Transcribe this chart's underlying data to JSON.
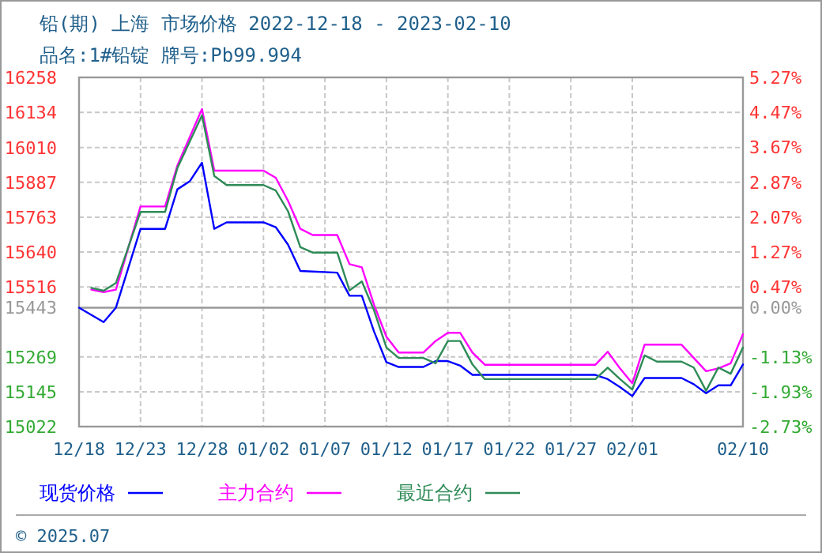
{
  "chart_data": {
    "type": "line",
    "title": "铅(期) 上海 市场价格 2022-12-18 - 2023-02-10",
    "subtitle": "品名:1#铅锭 牌号:Pb99.994",
    "series": [
      {
        "name": "现货价格",
        "color": "#0000ff",
        "x": [
          "2022-12-18",
          "2022-12-20",
          "2022-12-21",
          "2022-12-23",
          "2022-12-25",
          "2022-12-26",
          "2022-12-27",
          "2022-12-28",
          "2022-12-29",
          "2022-12-30",
          "2023-01-02",
          "2023-01-03",
          "2023-01-04",
          "2023-01-05",
          "2023-01-08",
          "2023-01-09",
          "2023-01-10",
          "2023-01-11",
          "2023-01-12",
          "2023-01-13",
          "2023-01-15",
          "2023-01-16",
          "2023-01-17",
          "2023-01-18",
          "2023-01-19",
          "2023-01-29",
          "2023-01-30",
          "2023-01-31",
          "2023-02-01",
          "2023-02-02",
          "2023-02-05",
          "2023-02-06",
          "2023-02-07",
          "2023-02-08",
          "2023-02-09",
          "2023-02-10"
        ],
        "values": [
          15443,
          15392,
          15443,
          15722,
          15722,
          15862,
          15890,
          15956,
          15722,
          15745,
          15745,
          15728,
          15666,
          15573,
          15567,
          15485,
          15485,
          15358,
          15250,
          15233,
          15233,
          15254,
          15254,
          15238,
          15205,
          15205,
          15190,
          15162,
          15130,
          15194,
          15194,
          15172,
          15140,
          15168,
          15168,
          15242
        ]
      },
      {
        "name": "主力合约",
        "color": "#ff00ff",
        "x": [
          "2022-12-19",
          "2022-12-20",
          "2022-12-21",
          "2022-12-23",
          "2022-12-25",
          "2022-12-26",
          "2022-12-28",
          "2022-12-29",
          "2023-01-02",
          "2023-01-03",
          "2023-01-04",
          "2023-01-05",
          "2023-01-06",
          "2023-01-08",
          "2023-01-09",
          "2023-01-10",
          "2023-01-11",
          "2023-01-12",
          "2023-01-13",
          "2023-01-15",
          "2023-01-16",
          "2023-01-17",
          "2023-01-18",
          "2023-01-19",
          "2023-01-20",
          "2023-01-29",
          "2023-01-30",
          "2023-01-31",
          "2023-02-01",
          "2023-02-02",
          "2023-02-05",
          "2023-02-06",
          "2023-02-07",
          "2023-02-08",
          "2023-02-09",
          "2023-02-10"
        ],
        "values": [
          15507,
          15498,
          15507,
          15801,
          15801,
          15946,
          16146,
          15928,
          15928,
          15903,
          15821,
          15722,
          15700,
          15700,
          15597,
          15586,
          15452,
          15340,
          15284,
          15284,
          15325,
          15354,
          15354,
          15284,
          15241,
          15241,
          15287,
          15228,
          15175,
          15312,
          15312,
          15265,
          15218,
          15228,
          15246,
          15349
        ]
      },
      {
        "name": "最近合约",
        "color": "#2e8b57",
        "x": [
          "2022-12-19",
          "2022-12-20",
          "2022-12-21",
          "2022-12-23",
          "2022-12-25",
          "2022-12-26",
          "2022-12-28",
          "2022-12-29",
          "2022-12-30",
          "2023-01-02",
          "2023-01-03",
          "2023-01-04",
          "2023-01-05",
          "2023-01-06",
          "2023-01-08",
          "2023-01-09",
          "2023-01-10",
          "2023-01-11",
          "2023-01-12",
          "2023-01-13",
          "2023-01-15",
          "2023-01-16",
          "2023-01-17",
          "2023-01-18",
          "2023-01-19",
          "2023-01-20",
          "2023-01-29",
          "2023-01-30",
          "2023-01-31",
          "2023-02-01",
          "2023-02-02",
          "2023-02-03",
          "2023-02-05",
          "2023-02-06",
          "2023-02-07",
          "2023-02-08",
          "2023-02-09",
          "2023-02-10"
        ],
        "values": [
          15513,
          15503,
          15530,
          15782,
          15782,
          15937,
          16124,
          15909,
          15877,
          15877,
          15858,
          15784,
          15657,
          15638,
          15638,
          15504,
          15536,
          15433,
          15302,
          15265,
          15265,
          15246,
          15325,
          15325,
          15242,
          15190,
          15190,
          15231,
          15190,
          15153,
          15274,
          15252,
          15252,
          15231,
          15149,
          15231,
          15209,
          15302
        ]
      }
    ],
    "xlim": [
      "2022-12-18",
      "2023-02-10"
    ],
    "xticks": [
      {
        "value": "2022-12-18",
        "label": "12/18"
      },
      {
        "value": "2022-12-23",
        "label": "12/23"
      },
      {
        "value": "2022-12-28",
        "label": "12/28"
      },
      {
        "value": "2023-01-02",
        "label": "01/02"
      },
      {
        "value": "2023-01-07",
        "label": "01/07"
      },
      {
        "value": "2023-01-12",
        "label": "01/12"
      },
      {
        "value": "2023-01-17",
        "label": "01/17"
      },
      {
        "value": "2023-01-22",
        "label": "01/22"
      },
      {
        "value": "2023-01-27",
        "label": "01/27"
      },
      {
        "value": "2023-02-01",
        "label": "02/01"
      },
      {
        "value": "2023-02-10",
        "label": "02/10"
      }
    ],
    "ylim": [
      15022,
      16258
    ],
    "yticks": [
      16258,
      16134,
      16010,
      15887,
      15763,
      15640,
      15516,
      15443,
      15269,
      15145,
      15022
    ],
    "y2lim": [
      -2.73,
      5.27
    ],
    "y2ticks": [
      {
        "value": 5.27,
        "label": "5.27%"
      },
      {
        "value": 4.47,
        "label": "4.47%"
      },
      {
        "value": 3.67,
        "label": "3.67%"
      },
      {
        "value": 2.87,
        "label": "2.87%"
      },
      {
        "value": 2.07,
        "label": "2.07%"
      },
      {
        "value": 1.27,
        "label": "1.27%"
      },
      {
        "value": 0.47,
        "label": "0.47%"
      },
      {
        "value": 0,
        "label": "0.00%"
      },
      {
        "value": -1.13,
        "label": "-1.13%"
      },
      {
        "value": -1.93,
        "label": "-1.93%"
      },
      {
        "value": -2.73,
        "label": "-2.73%"
      }
    ],
    "ref_lines": [
      {
        "axis": "y",
        "value": 15443,
        "color": "#999999"
      }
    ],
    "grid": true,
    "legend": "bottom",
    "line_style": "solid",
    "marker": "none",
    "annotations": [
      "© 2025.07"
    ]
  }
}
